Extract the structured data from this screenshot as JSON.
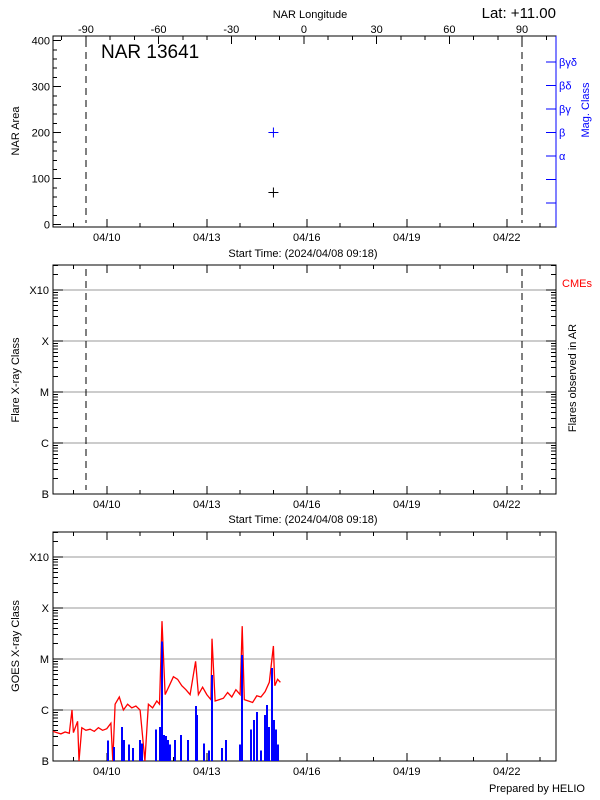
{
  "footer": "Prepared by HELIO",
  "colors": {
    "axis": "#000000",
    "mag_class": "#0000ff",
    "goes": "#ff0000",
    "flares": "#0000ff",
    "cme": "#ff0000",
    "grid": "#999999"
  },
  "chart_data": [
    {
      "type": "scatter",
      "title": "NAR 13641",
      "annotation": "Lat: +11.00",
      "top_xlabel": "NAR Longitude",
      "top_xticks": [
        "-90",
        "-60",
        "-30",
        "0",
        "30",
        "60",
        "90"
      ],
      "xlabel": "Start Time: (2024/04/08 09:18)",
      "xticks": [
        "04/10",
        "04/13",
        "04/16",
        "04/19",
        "04/22"
      ],
      "xlim": [
        "2024-04-08T09:18",
        "2024-04-23T11:30"
      ],
      "ylabel": "NAR Area",
      "yticks": [
        "0",
        "100",
        "200",
        "300",
        "400"
      ],
      "ylim": [
        -5,
        410
      ],
      "y2label": "Mag. Class",
      "y2ticks": [
        "",
        "",
        "α",
        "β",
        "βγ",
        "βδ",
        "βγδ"
      ],
      "limb_lines": [
        "2024-04-09T09:00",
        "2024-04-22T11:00"
      ],
      "points": [
        {
          "time": "2024-04-15T00:00",
          "area": 70,
          "mag_class": "β"
        }
      ],
      "grid": false
    },
    {
      "type": "scatter",
      "ylabel": "Flare X-ray Class",
      "y2label": "Flares observed in AR",
      "legend": "CMEs",
      "legend_placement": "top-right",
      "xlabel": "Start Time: (2024/04/08 09:18)",
      "xticks": [
        "04/10",
        "04/13",
        "04/16",
        "04/19",
        "04/22"
      ],
      "yticks": [
        "B",
        "C",
        "M",
        "X",
        "X10"
      ],
      "y_scale": "log",
      "grid": true,
      "limb_lines": [
        "2024-04-09T09:00",
        "2024-04-22T11:00"
      ],
      "flares": []
    },
    {
      "type": "line",
      "ylabel": "GOES X-ray Class",
      "xticks": [
        "04/10",
        "04/13",
        "04/16",
        "04/19",
        "04/22"
      ],
      "yticks": [
        "B",
        "C",
        "M",
        "X",
        "X10"
      ],
      "y_scale": "log",
      "grid": true,
      "series": [
        {
          "kind": "line",
          "color": "#ff0000",
          "values": [
            [
              "2024-04-08T09:20",
              3.8e-07
            ],
            [
              "2024-04-08T12:00",
              3.6e-07
            ],
            [
              "2024-04-08T15:00",
              3.4e-07
            ],
            [
              "2024-04-08T18:00",
              3.7e-07
            ],
            [
              "2024-04-08T21:00",
              3.5e-07
            ],
            [
              "2024-04-08T23:00",
              1e-06
            ],
            [
              "2024-04-09T00:00",
              3.6e-07
            ],
            [
              "2024-04-09T03:00",
              6e-07
            ],
            [
              "2024-04-09T04:00",
              1e-07
            ],
            [
              "2024-04-09T06:00",
              4.5e-07
            ],
            [
              "2024-04-09T09:00",
              4e-07
            ],
            [
              "2024-04-09T12:00",
              4.2e-07
            ],
            [
              "2024-04-09T15:00",
              3.8e-07
            ],
            [
              "2024-04-09T18:00",
              4.5e-07
            ],
            [
              "2024-04-09T21:00",
              4e-07
            ],
            [
              "2024-04-10T00:00",
              4.3e-07
            ],
            [
              "2024-04-10T03:00",
              5.5e-07
            ],
            [
              "2024-04-10T04:20",
              1e-07
            ],
            [
              "2024-04-10T06:00",
              1.3e-06
            ],
            [
              "2024-04-10T09:00",
              1.8e-06
            ],
            [
              "2024-04-10T12:00",
              1e-06
            ],
            [
              "2024-04-10T15:00",
              1.3e-06
            ],
            [
              "2024-04-10T18:00",
              1.1e-06
            ],
            [
              "2024-04-10T21:00",
              1.2e-06
            ],
            [
              "2024-04-11T00:00",
              1e-06
            ],
            [
              "2024-04-11T03:30",
              1e-07
            ],
            [
              "2024-04-11T06:00",
              1.3e-06
            ],
            [
              "2024-04-11T09:00",
              1.1e-06
            ],
            [
              "2024-04-11T12:00",
              1.5e-06
            ],
            [
              "2024-04-11T14:00",
              1.3e-06
            ],
            [
              "2024-04-11T15:45",
              5.5e-05
            ],
            [
              "2024-04-11T18:00",
              2e-06
            ],
            [
              "2024-04-11T21:00",
              3e-06
            ],
            [
              "2024-04-12T00:00",
              4.5e-06
            ],
            [
              "2024-04-12T03:00",
              4e-06
            ],
            [
              "2024-04-12T06:00",
              3e-06
            ],
            [
              "2024-04-12T09:00",
              2.5e-06
            ],
            [
              "2024-04-12T12:00",
              2e-06
            ],
            [
              "2024-04-12T16:00",
              9e-06
            ],
            [
              "2024-04-12T18:00",
              2e-06
            ],
            [
              "2024-04-12T21:00",
              2.8e-06
            ],
            [
              "2024-04-13T00:00",
              2e-06
            ],
            [
              "2024-04-13T03:00",
              1.6e-06
            ],
            [
              "2024-04-13T03:48",
              2.5e-05
            ],
            [
              "2024-04-13T06:00",
              1.5e-06
            ],
            [
              "2024-04-13T09:00",
              1.6e-06
            ],
            [
              "2024-04-13T12:00",
              1.7e-06
            ],
            [
              "2024-04-13T15:00",
              2.2e-06
            ],
            [
              "2024-04-13T18:00",
              1.8e-06
            ],
            [
              "2024-04-13T21:00",
              2.5e-06
            ],
            [
              "2024-04-14T00:00",
              2e-06
            ],
            [
              "2024-04-14T01:30",
              4.4e-05
            ],
            [
              "2024-04-14T03:00",
              1.6e-06
            ],
            [
              "2024-04-14T06:00",
              1.5e-06
            ],
            [
              "2024-04-14T09:00",
              1.4e-06
            ],
            [
              "2024-04-14T12:00",
              1.9e-06
            ],
            [
              "2024-04-14T15:00",
              1.8e-06
            ],
            [
              "2024-04-14T18:00",
              2.3e-06
            ],
            [
              "2024-04-14T21:00",
              3.5e-06
            ],
            [
              "2024-04-15T00:00",
              1.8e-05
            ],
            [
              "2024-04-15T01:00",
              3e-06
            ],
            [
              "2024-04-15T03:00",
              4e-06
            ],
            [
              "2024-04-15T05:00",
              3.5e-06
            ]
          ]
        },
        {
          "kind": "bars",
          "color": "#0000ff",
          "values": [
            [
              "2024-04-10T00:54",
              2.5e-07
            ],
            [
              "2024-04-10T05:12",
              1.9e-07
            ],
            [
              "2024-04-10T11:00",
              4.6e-07
            ],
            [
              "2024-04-10T12:25",
              2.6e-07
            ],
            [
              "2024-04-10T16:00",
              2.1e-07
            ],
            [
              "2024-04-10T18:55",
              1.8e-07
            ],
            [
              "2024-04-10T23:58",
              2.6e-07
            ],
            [
              "2024-04-11T01:24",
              2.2e-07
            ],
            [
              "2024-04-11T11:30",
              4.1e-07
            ],
            [
              "2024-04-11T14:20",
              4.6e-07
            ],
            [
              "2024-04-11T15:45",
              2.2e-05
            ],
            [
              "2024-04-11T17:10",
              3.2e-07
            ],
            [
              "2024-04-11T18:40",
              3.1e-07
            ],
            [
              "2024-04-11T20:05",
              2.6e-07
            ],
            [
              "2024-04-11T21:30",
              2.1e-07
            ],
            [
              "2024-04-12T01:10",
              2.6e-07
            ],
            [
              "2024-04-12T05:30",
              3.2e-07
            ],
            [
              "2024-04-12T10:30",
              2.6e-07
            ],
            [
              "2024-04-12T16:15",
              1.2e-06
            ],
            [
              "2024-04-12T17:00",
              8e-07
            ],
            [
              "2024-04-12T22:00",
              2.2e-07
            ],
            [
              "2024-04-13T01:40",
              1.6e-07
            ],
            [
              "2024-04-13T03:48",
              4.9e-06
            ],
            [
              "2024-04-13T11:00",
              1.8e-07
            ],
            [
              "2024-04-13T13:50",
              2.6e-07
            ],
            [
              "2024-04-14T00:00",
              2.1e-07
            ],
            [
              "2024-04-14T01:30",
              1.2e-05
            ],
            [
              "2024-04-14T07:50",
              4.1e-07
            ],
            [
              "2024-04-14T10:00",
              6.4e-07
            ],
            [
              "2024-04-14T12:10",
              9.1e-07
            ],
            [
              "2024-04-14T15:00",
              1.6e-07
            ],
            [
              "2024-04-14T17:55",
              8e-07
            ],
            [
              "2024-04-14T19:20",
              1.25e-06
            ],
            [
              "2024-04-14T20:50",
              4.6e-07
            ],
            [
              "2024-04-14T23:00",
              6.6e-06
            ],
            [
              "2024-04-15T00:25",
              6.4e-07
            ],
            [
              "2024-04-15T01:55",
              4.1e-07
            ],
            [
              "2024-04-15T03:20",
              2.1e-07
            ]
          ]
        }
      ]
    }
  ]
}
